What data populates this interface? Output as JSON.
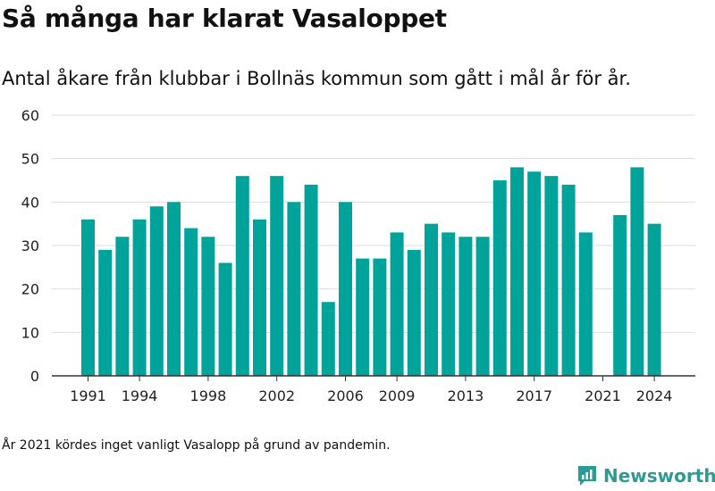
{
  "title": "Så många har klarat Vasaloppet",
  "subtitle": "Antal åkare från klubbar i Bollnäs kommun som gått i mål år för år.",
  "note": "År 2021 kördes inget vanligt Vasalopp på grund av pandemin.",
  "brand": {
    "name": "Newsworthy",
    "logo_icon": "newsworthy-logo-icon"
  },
  "colors": {
    "bar": "#00a39a",
    "grid": "#dddddd",
    "axis": "#333333"
  },
  "chart_data": {
    "type": "bar",
    "title": "Så många har klarat Vasaloppet",
    "xlabel": "",
    "ylabel": "",
    "ylim": [
      0,
      60
    ],
    "yticks": [
      0,
      10,
      20,
      30,
      40,
      50,
      60
    ],
    "xtick_labels": [
      "1991",
      "1994",
      "1998",
      "2002",
      "2006",
      "2009",
      "2013",
      "2017",
      "2021",
      "2024"
    ],
    "grid": true,
    "categories": [
      1991,
      1992,
      1993,
      1994,
      1995,
      1996,
      1997,
      1998,
      1999,
      2000,
      2001,
      2002,
      2003,
      2004,
      2005,
      2006,
      2007,
      2008,
      2009,
      2010,
      2011,
      2012,
      2013,
      2014,
      2015,
      2016,
      2017,
      2018,
      2019,
      2020,
      2021,
      2022,
      2023,
      2024
    ],
    "values": [
      36,
      29,
      32,
      36,
      39,
      40,
      34,
      32,
      26,
      46,
      36,
      46,
      40,
      44,
      17,
      40,
      27,
      27,
      33,
      29,
      35,
      33,
      32,
      32,
      45,
      48,
      47,
      46,
      44,
      33,
      null,
      37,
      48,
      35
    ]
  }
}
